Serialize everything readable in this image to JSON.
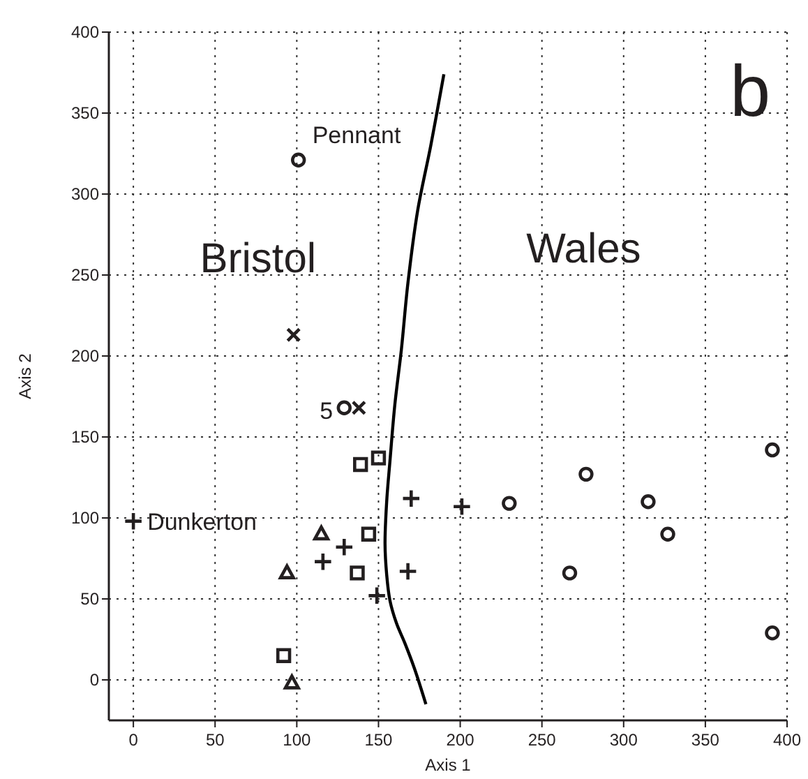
{
  "chart_data": {
    "type": "scatter",
    "xlabel": "Axis 1",
    "ylabel": "Axis 2",
    "xlim": [
      -15,
      400
    ],
    "ylim": [
      -25,
      400
    ],
    "xticks": [
      0,
      50,
      100,
      150,
      200,
      250,
      300,
      350,
      400
    ],
    "yticks": [
      0,
      50,
      100,
      150,
      200,
      250,
      300,
      350,
      400
    ],
    "grid": true,
    "series": [
      {
        "color": "#231f20",
        "marker": "circle",
        "x": [
          101,
          129,
          230,
          277,
          315,
          327,
          267,
          391,
          391
        ],
        "values": [
          321,
          168,
          109,
          127,
          110,
          90,
          66,
          142,
          29
        ]
      },
      {
        "color": "#231f20",
        "marker": "x",
        "x": [
          98,
          138
        ],
        "values": [
          213,
          168
        ]
      },
      {
        "color": "#231f20",
        "marker": "square",
        "x": [
          139,
          150,
          144,
          137,
          92
        ],
        "values": [
          133,
          137,
          90,
          66,
          15
        ]
      },
      {
        "color": "#231f20",
        "marker": "triangle",
        "x": [
          115,
          94,
          97
        ],
        "values": [
          90,
          66,
          -2
        ]
      },
      {
        "color": "#231f20",
        "marker": "cross",
        "x": [
          0,
          116,
          129,
          149,
          170,
          168,
          201
        ],
        "values": [
          98,
          73,
          82,
          52,
          112,
          67,
          107
        ]
      },
      {
        "type": "line",
        "color": "#000000",
        "marker": "none",
        "line_style": "solid",
        "x": [
          190,
          182,
          174,
          168,
          164,
          160,
          157,
          155,
          154,
          155,
          157,
          161,
          166,
          172,
          179
        ],
        "values": [
          374,
          330,
          290,
          245,
          204,
          170,
          135,
          110,
          84,
          65,
          49,
          35,
          23,
          7,
          -15
        ]
      }
    ],
    "annotations": [
      "b",
      "Bristol",
      "Wales",
      {
        "text": "Pennant",
        "x": 101,
        "y": 321
      },
      {
        "text": "5",
        "x": 129,
        "y": 168
      },
      {
        "text": "Dunkerton",
        "x": 0,
        "y": 98
      }
    ]
  }
}
